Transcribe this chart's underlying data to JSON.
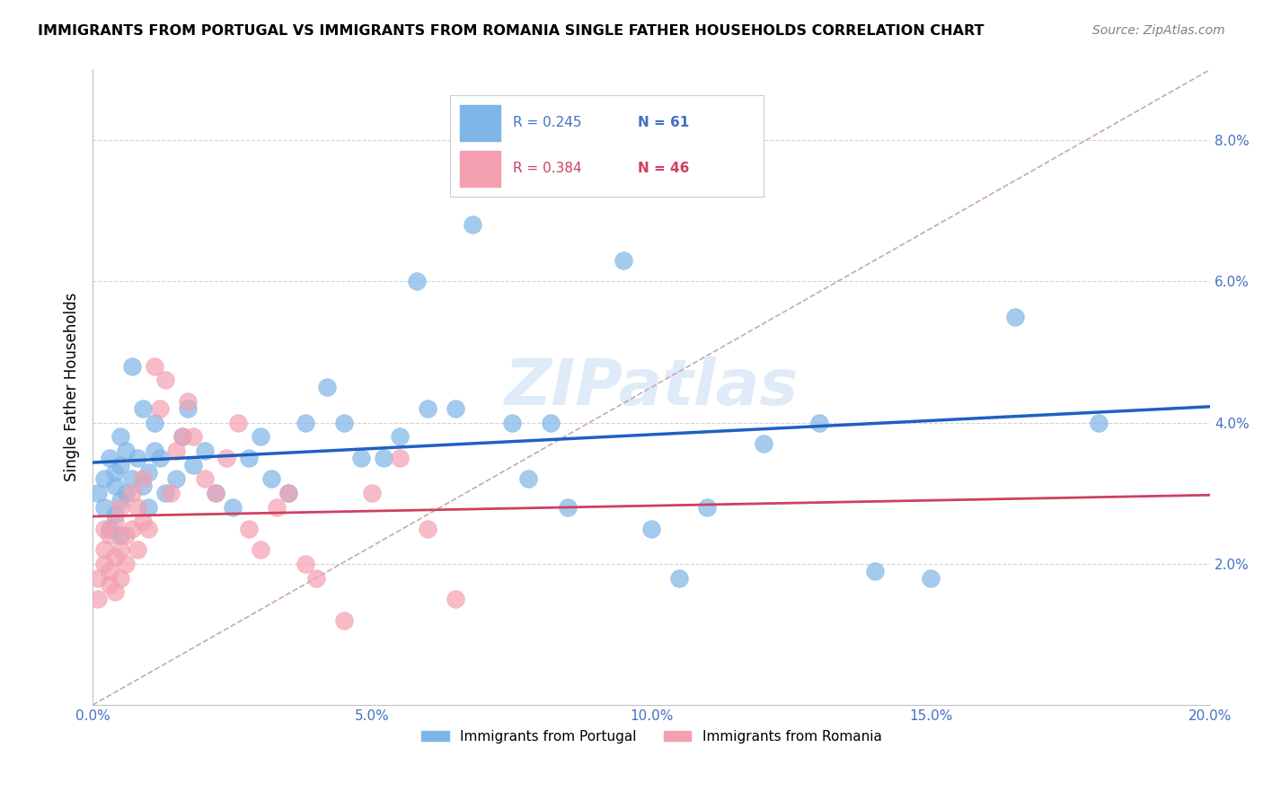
{
  "title": "IMMIGRANTS FROM PORTUGAL VS IMMIGRANTS FROM ROMANIA SINGLE FATHER HOUSEHOLDS CORRELATION CHART",
  "source": "Source: ZipAtlas.com",
  "ylabel_label": "Single Father Households",
  "xlim": [
    0.0,
    0.2
  ],
  "ylim": [
    0.0,
    0.09
  ],
  "xticks": [
    0.0,
    0.05,
    0.1,
    0.15,
    0.2
  ],
  "yticks": [
    0.02,
    0.04,
    0.06,
    0.08
  ],
  "xtick_labels": [
    "0.0%",
    "5.0%",
    "10.0%",
    "15.0%",
    "20.0%"
  ],
  "ytick_labels": [
    "2.0%",
    "4.0%",
    "6.0%",
    "8.0%"
  ],
  "portugal_color": "#7EB6E8",
  "romania_color": "#F4A0B0",
  "portugal_R": "0.245",
  "portugal_N": "61",
  "romania_R": "0.384",
  "romania_N": "46",
  "portugal_line_color": "#2060C0",
  "romania_line_color": "#D04060",
  "diagonal_color": "#C8A8B0",
  "watermark": "ZIPatlas",
  "portugal_x": [
    0.001,
    0.002,
    0.002,
    0.003,
    0.003,
    0.004,
    0.004,
    0.004,
    0.005,
    0.005,
    0.005,
    0.005,
    0.006,
    0.006,
    0.007,
    0.007,
    0.008,
    0.009,
    0.009,
    0.01,
    0.01,
    0.011,
    0.011,
    0.012,
    0.013,
    0.015,
    0.016,
    0.017,
    0.018,
    0.02,
    0.022,
    0.025,
    0.028,
    0.03,
    0.032,
    0.035,
    0.038,
    0.042,
    0.045,
    0.048,
    0.052,
    0.055,
    0.058,
    0.06,
    0.065,
    0.068,
    0.075,
    0.078,
    0.082,
    0.085,
    0.09,
    0.095,
    0.1,
    0.105,
    0.11,
    0.12,
    0.13,
    0.14,
    0.15,
    0.165,
    0.18
  ],
  "portugal_y": [
    0.03,
    0.028,
    0.032,
    0.025,
    0.035,
    0.027,
    0.031,
    0.033,
    0.024,
    0.029,
    0.034,
    0.038,
    0.036,
    0.03,
    0.048,
    0.032,
    0.035,
    0.031,
    0.042,
    0.033,
    0.028,
    0.04,
    0.036,
    0.035,
    0.03,
    0.032,
    0.038,
    0.042,
    0.034,
    0.036,
    0.03,
    0.028,
    0.035,
    0.038,
    0.032,
    0.03,
    0.04,
    0.045,
    0.04,
    0.035,
    0.035,
    0.038,
    0.06,
    0.042,
    0.042,
    0.068,
    0.04,
    0.032,
    0.04,
    0.028,
    0.075,
    0.063,
    0.025,
    0.018,
    0.028,
    0.037,
    0.04,
    0.019,
    0.018,
    0.055,
    0.04
  ],
  "romania_x": [
    0.001,
    0.001,
    0.002,
    0.002,
    0.002,
    0.003,
    0.003,
    0.003,
    0.004,
    0.004,
    0.004,
    0.005,
    0.005,
    0.005,
    0.006,
    0.006,
    0.007,
    0.007,
    0.008,
    0.008,
    0.009,
    0.009,
    0.01,
    0.011,
    0.012,
    0.013,
    0.014,
    0.015,
    0.016,
    0.017,
    0.018,
    0.02,
    0.022,
    0.024,
    0.026,
    0.028,
    0.03,
    0.033,
    0.035,
    0.038,
    0.04,
    0.045,
    0.05,
    0.055,
    0.06,
    0.065
  ],
  "romania_y": [
    0.015,
    0.018,
    0.02,
    0.022,
    0.025,
    0.017,
    0.019,
    0.024,
    0.016,
    0.021,
    0.026,
    0.018,
    0.022,
    0.028,
    0.02,
    0.024,
    0.025,
    0.03,
    0.022,
    0.028,
    0.026,
    0.032,
    0.025,
    0.048,
    0.042,
    0.046,
    0.03,
    0.036,
    0.038,
    0.043,
    0.038,
    0.032,
    0.03,
    0.035,
    0.04,
    0.025,
    0.022,
    0.028,
    0.03,
    0.02,
    0.018,
    0.012,
    0.03,
    0.035,
    0.025,
    0.015
  ]
}
